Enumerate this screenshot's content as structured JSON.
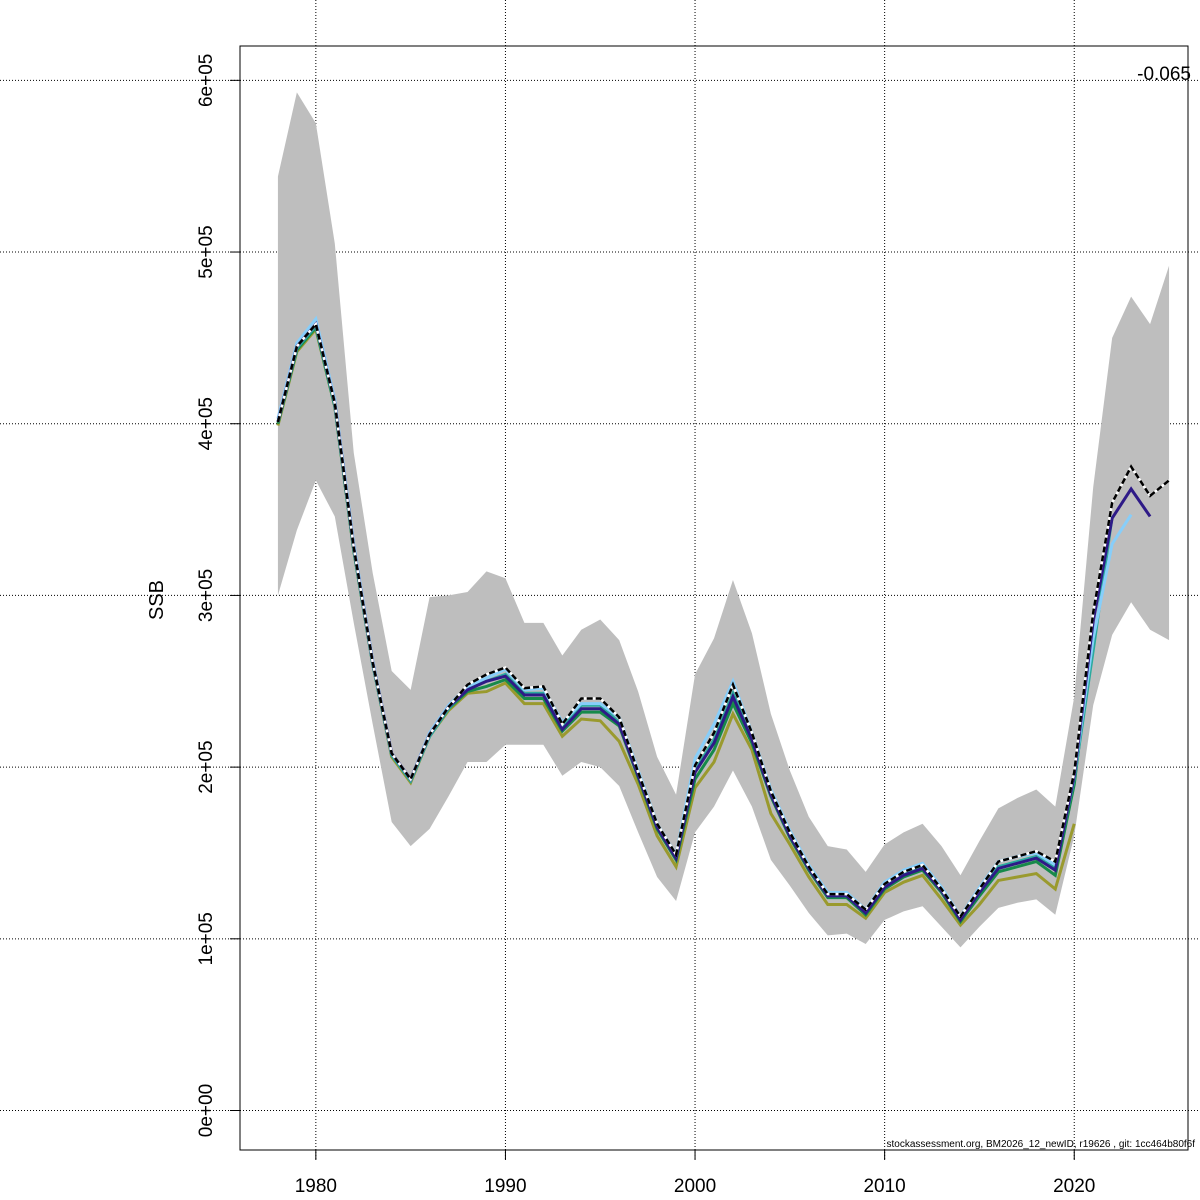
{
  "chart_data": {
    "type": "line",
    "title": "",
    "xlabel": "",
    "ylabel": "SSB",
    "xlim": [
      1976,
      2026
    ],
    "ylim": [
      -23000.0,
      620000.0
    ],
    "grid": true,
    "x_ticks": [
      1980,
      1990,
      2000,
      2010,
      2020
    ],
    "x_tick_labels": [
      "1980",
      "1990",
      "2000",
      "2010",
      "2020"
    ],
    "y_ticks": [
      0,
      100000.0,
      200000.0,
      300000.0,
      400000.0,
      500000.0,
      600000.0
    ],
    "y_tick_labels": [
      "0e+00",
      "1e+05",
      "2e+05",
      "3e+05",
      "4e+05",
      "5e+05",
      "6e+05"
    ],
    "annotation": "-0.065",
    "footer": "stockassessment.org, BM2026_12_newID, r19626 , git: 1cc464b80f6f",
    "confidence_band": {
      "color": "#bebebe",
      "x_start": 1978,
      "upper": [
        544000.0,
        593000.0,
        575000.0,
        505000.0,
        383000.0,
        313000.0,
        256000.0,
        245000.0,
        299000.0,
        300000.0,
        302000.0,
        314000.0,
        310000.0,
        284000.0,
        284000.0,
        265000.0,
        280000.0,
        286000.0,
        274000.0,
        244000.0,
        206000.0,
        184000.0,
        254000.0,
        275000.0,
        309000.0,
        278000.0,
        231000.0,
        198000.0,
        171000.0,
        154000.0,
        152000.0,
        139000.0,
        155000.0,
        162000.0,
        167000.0,
        154000.0,
        137000.0,
        157000.0,
        176000.0,
        182000.0,
        187000.0,
        177000.0,
        241000.0,
        363000.0,
        450000.0,
        474000.0,
        458000.0,
        492000.0
      ],
      "lower": [
        300000.0,
        338000.0,
        367000.0,
        346000.0,
        284000.0,
        225000.0,
        168000.0,
        154000.0,
        164000.0,
        183000.0,
        203000.0,
        203000.0,
        213000.0,
        213000.0,
        213000.0,
        195000.0,
        203000.0,
        200000.0,
        189000.0,
        162000.0,
        136000.0,
        122000.0,
        162000.0,
        177000.0,
        198000.0,
        177000.0,
        146000.0,
        131000.0,
        115000.0,
        102000.0,
        103000.0,
        97000.0,
        111000.0,
        116000.0,
        119000.0,
        107000.0,
        95000.0,
        107000.0,
        118000.0,
        121000.0,
        123000.0,
        114000.0,
        160000.0,
        236000.0,
        277000.0,
        296000.0,
        280000.0,
        274000.0
      ]
    },
    "series": [
      {
        "color": "#9a9a2e",
        "x_start": 1978,
        "values": [
          399000.0,
          442000.0,
          455000.0,
          410000.0,
          326000.0,
          260000.0,
          206000.0,
          191000.0,
          218000.0,
          233000.0,
          243000.0,
          244000.0,
          249000.0,
          237000.0,
          237000.0,
          218000.0,
          228000.0,
          227000.0,
          215000.0,
          190000.0,
          160000.0,
          142000.0,
          188000.0,
          203000.0,
          231000.0,
          210000.0,
          173000.0,
          155000.0,
          136000.0,
          120000.0,
          120000.0,
          112000.0,
          127000.0,
          133000.0,
          137000.0,
          123000.0,
          108000.0,
          120000.0,
          134000.0,
          136000.0,
          138000.0,
          129000.0,
          167000.0
        ]
      },
      {
        "color": "#178a4a",
        "x_start": 1978,
        "values": [
          400000.0,
          443000.0,
          456000.0,
          410000.0,
          326000.0,
          260000.0,
          207000.0,
          192000.0,
          218000.0,
          234000.0,
          244000.0,
          247000.0,
          251000.0,
          240000.0,
          240000.0,
          221000.0,
          232000.0,
          232000.0,
          224000.0,
          194000.0,
          164000.0,
          146000.0,
          193000.0,
          210000.0,
          237000.0,
          214000.0,
          183000.0,
          159000.0,
          140000.0,
          124000.0,
          124000.0,
          114000.0,
          129000.0,
          136000.0,
          140000.0,
          127000.0,
          110000.0,
          125000.0,
          139000.0,
          142000.0,
          145000.0,
          137000.0,
          190000.0,
          280000.0
        ]
      },
      {
        "color": "#2aaa9e",
        "x_start": 1978,
        "values": [
          401000.0,
          444000.0,
          457000.0,
          411000.0,
          327000.0,
          260000.0,
          207000.0,
          192000.0,
          218000.0,
          234000.0,
          246000.0,
          250000.0,
          254000.0,
          243000.0,
          243000.0,
          223000.0,
          236000.0,
          236000.0,
          226000.0,
          196000.0,
          166000.0,
          148000.0,
          198000.0,
          216000.0,
          243000.0,
          218000.0,
          185000.0,
          161000.0,
          141000.0,
          125000.0,
          125000.0,
          116000.0,
          131000.0,
          138000.0,
          142000.0,
          128000.0,
          112000.0,
          128000.0,
          142000.0,
          145000.0,
          148000.0,
          141000.0,
          193000.0,
          268000.0,
          346000.0
        ]
      },
      {
        "color": "#87cefa",
        "x_start": 1978,
        "values": [
          403000.0,
          447000.0,
          461000.0,
          414000.0,
          330000.0,
          262000.0,
          208000.0,
          193000.0,
          220000.0,
          236000.0,
          247000.0,
          252000.0,
          257000.0,
          245000.0,
          246000.0,
          226000.0,
          237000.0,
          237000.0,
          229000.0,
          198000.0,
          167000.0,
          149000.0,
          205000.0,
          225000.0,
          250000.0,
          220000.0,
          187000.0,
          163000.0,
          143000.0,
          127000.0,
          127000.0,
          117000.0,
          133000.0,
          140000.0,
          144000.0,
          130000.0,
          113000.0,
          130000.0,
          145000.0,
          148000.0,
          150000.0,
          143000.0,
          195000.0,
          275000.0,
          330000.0,
          347000.0
        ]
      },
      {
        "color": "#2e1a87",
        "x_start": 1978,
        "values": [
          401000.0,
          445000.0,
          458000.0,
          412000.0,
          328000.0,
          261000.0,
          208000.0,
          193000.0,
          219000.0,
          235000.0,
          245000.0,
          250000.0,
          253000.0,
          242000.0,
          242000.0,
          222000.0,
          234000.0,
          234000.0,
          225000.0,
          195000.0,
          165000.0,
          147000.0,
          197000.0,
          214000.0,
          241000.0,
          216000.0,
          184000.0,
          160000.0,
          141000.0,
          125000.0,
          125000.0,
          115000.0,
          130000.0,
          137000.0,
          141000.0,
          128000.0,
          111000.0,
          127000.0,
          141000.0,
          144000.0,
          147000.0,
          140000.0,
          195000.0,
          285000.0,
          345000.0,
          362000.0,
          346000.0
        ]
      },
      {
        "color": "#000000",
        "dashed": true,
        "x_start": 1978,
        "values": [
          401000.0,
          445000.0,
          458000.0,
          412000.0,
          328000.0,
          261000.0,
          208000.0,
          193000.0,
          219000.0,
          235000.0,
          248000.0,
          254000.0,
          258000.0,
          246000.0,
          247000.0,
          225000.0,
          240000.0,
          240000.0,
          229000.0,
          197000.0,
          167000.0,
          149000.0,
          201000.0,
          220000.0,
          248000.0,
          220000.0,
          186000.0,
          162000.0,
          142000.0,
          126000.0,
          126000.0,
          117000.0,
          132000.0,
          139000.0,
          143000.0,
          129000.0,
          113000.0,
          129000.0,
          145000.0,
          148000.0,
          151000.0,
          145000.0,
          197000.0,
          290000.0,
          354000.0,
          375000.0,
          358000.0,
          367000.0
        ]
      }
    ]
  }
}
